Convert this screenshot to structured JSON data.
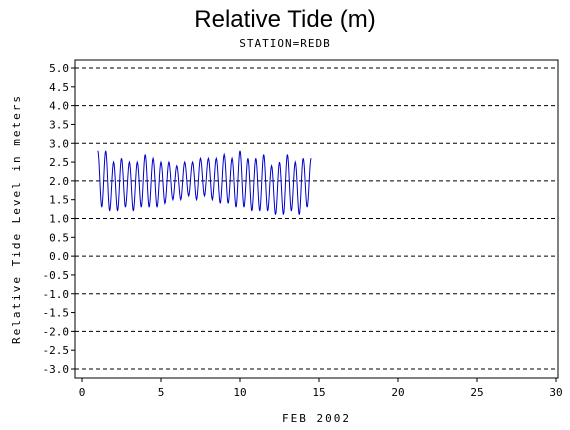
{
  "chart_data": {
    "type": "line",
    "title": "Relative Tide (m)",
    "subtitle": "STATION=REDB",
    "xlabel": "FEB 2002",
    "ylabel": "Relative Tide Level in meters",
    "xlim": [
      0,
      30
    ],
    "ylim": [
      -3.0,
      5.0
    ],
    "x_ticks": [
      0,
      5,
      10,
      15,
      20,
      25,
      30
    ],
    "y_ticks": [
      -3.0,
      -2.5,
      -2.0,
      -1.5,
      -1.0,
      -0.5,
      0.0,
      0.5,
      1.0,
      1.5,
      2.0,
      2.5,
      3.0,
      3.5,
      4.0,
      4.5,
      5.0
    ],
    "y_tick_labels": [
      "-3.0",
      "-2.5",
      "-2.0",
      "-1.5",
      "-1.0",
      "-0.5",
      "0.0",
      "0.5",
      "1.0",
      "1.5",
      "2.0",
      "2.5",
      "3.0",
      "3.5",
      "4.0",
      "4.5",
      "5.0"
    ],
    "gridlines_y": [
      -3.0,
      -2.0,
      -1.0,
      0.0,
      1.0,
      2.0,
      3.0,
      4.0,
      5.0
    ],
    "grid": "dashed horizontal at whole meters",
    "series": [
      {
        "color": "#0000cc",
        "x": [
          1.0,
          1.25,
          1.5,
          1.75,
          2.0,
          2.25,
          2.5,
          2.75,
          3.0,
          3.25,
          3.5,
          3.75,
          4.0,
          4.25,
          4.5,
          4.75,
          5.0,
          5.25,
          5.5,
          5.75,
          6.0,
          6.25,
          6.5,
          6.75,
          7.0,
          7.25,
          7.5,
          7.75,
          8.0,
          8.25,
          8.5,
          8.75,
          9.0,
          9.25,
          9.5,
          9.75,
          10.0,
          10.25,
          10.5,
          10.75,
          11.0,
          11.25,
          11.5,
          11.75,
          12.0,
          12.25,
          12.5,
          12.75,
          13.0,
          13.25,
          13.5,
          13.75,
          14.0,
          14.25,
          14.5
        ],
        "y": [
          2.8,
          1.3,
          2.8,
          1.2,
          2.5,
          1.2,
          2.6,
          1.3,
          2.5,
          1.2,
          2.5,
          1.3,
          2.7,
          1.3,
          2.6,
          1.3,
          2.5,
          1.4,
          2.5,
          1.5,
          2.4,
          1.5,
          2.5,
          1.6,
          2.5,
          1.5,
          2.6,
          1.6,
          2.6,
          1.5,
          2.6,
          1.4,
          2.7,
          1.4,
          2.6,
          1.3,
          2.8,
          1.3,
          2.6,
          1.2,
          2.6,
          1.2,
          2.7,
          1.2,
          2.4,
          1.1,
          2.5,
          1.1,
          2.7,
          1.2,
          2.5,
          1.1,
          2.6,
          1.3,
          2.6
        ]
      }
    ]
  }
}
